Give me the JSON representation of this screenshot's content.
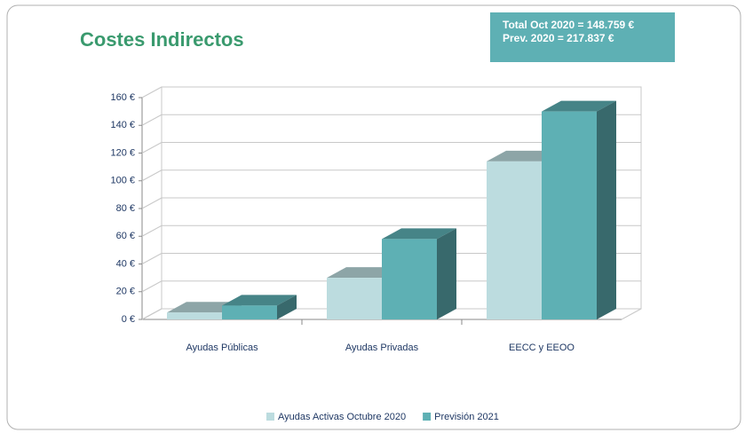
{
  "chart_data": {
    "type": "bar",
    "title": "Costes Indirectos",
    "annotations": [
      "Total  Oct 2020 = 148.759 €",
      "Prev.  2020 = 217.837 €"
    ],
    "categories": [
      "Ayudas Públicas",
      "Ayudas Privadas",
      "EECC y EEOO"
    ],
    "series": [
      {
        "name": "Ayudas Activas Octubre 2020",
        "color": "#bcdcdf",
        "values": [
          5,
          30,
          114
        ]
      },
      {
        "name": "Previsión 2021",
        "color": "#5eb0b4",
        "values": [
          10,
          58,
          150
        ]
      }
    ],
    "ylim": [
      0,
      160
    ],
    "yticks": [
      {
        "value": 0,
        "label": "0 €"
      },
      {
        "value": 20,
        "label": "20 €"
      },
      {
        "value": 40,
        "label": "40 €"
      },
      {
        "value": 60,
        "label": "60 €"
      },
      {
        "value": 80,
        "label": "80 €"
      },
      {
        "value": 100,
        "label": "100 €"
      },
      {
        "value": 120,
        "label": "120 €"
      },
      {
        "value": 140,
        "label": "140 €"
      },
      {
        "value": 160,
        "label": "160 €"
      }
    ],
    "grid": true,
    "legend": "bottom"
  }
}
